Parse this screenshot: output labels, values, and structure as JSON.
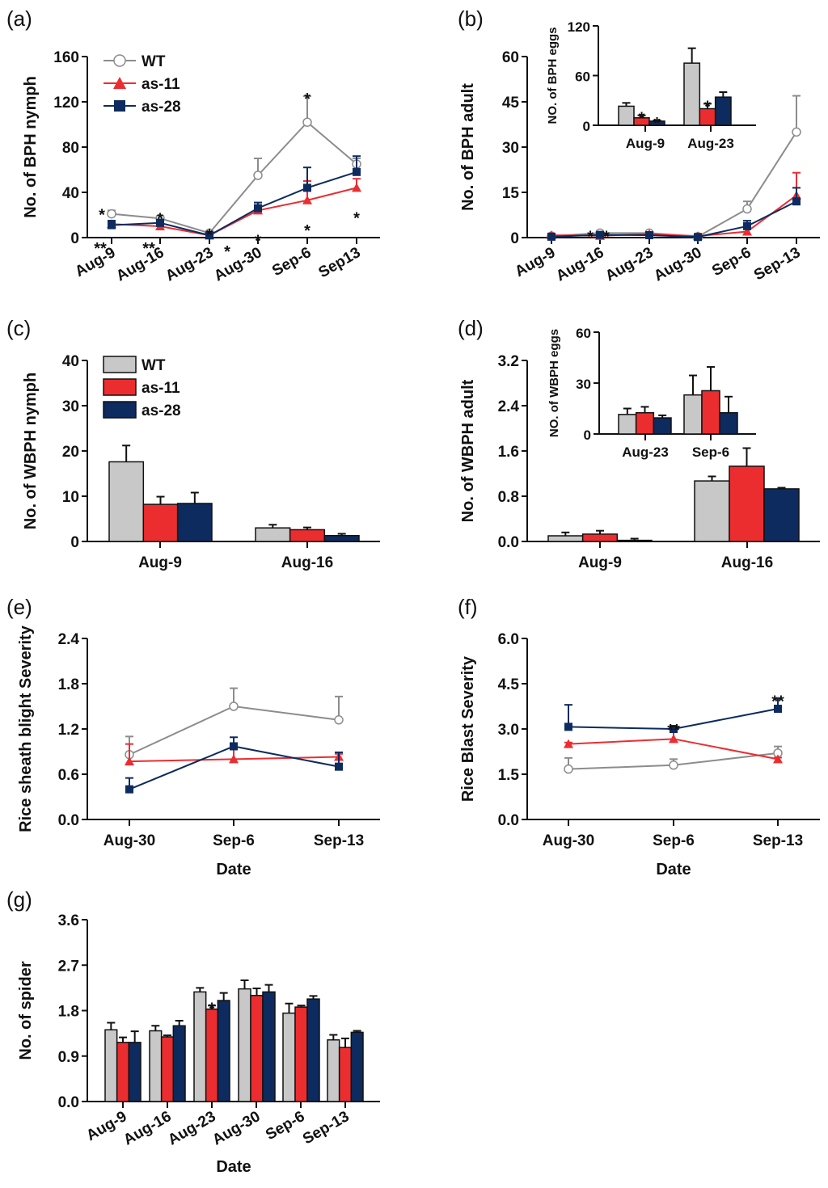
{
  "figure": {
    "colors": {
      "WT": "#c8c8c8",
      "WT_line": "#8c8c8c",
      "as-11": "#ec2d30",
      "as-28": "#0d2b5e",
      "axis": "#111111"
    },
    "legend_series": [
      "WT",
      "as-11",
      "as-28"
    ]
  },
  "chart_data": [
    {
      "id": "a",
      "panel_label": "(a)",
      "type": "line",
      "title": "",
      "xlabel": "",
      "ylabel": "No. of BPH nymph",
      "categories": [
        "Aug-9",
        "Aug-16",
        "Aug-23",
        "Aug-30",
        "Sep-6",
        "Sep13"
      ],
      "x_tick_rotation": "rotated",
      "ylim": [
        0,
        160
      ],
      "yticks": [
        "0",
        "40",
        "80",
        "120",
        "160"
      ],
      "ytick_values": [
        0,
        40,
        80,
        120,
        160
      ],
      "legend": "top-left",
      "series": [
        {
          "name": "WT",
          "values": [
            21,
            17,
            4,
            55,
            102,
            65
          ],
          "errors": [
            3,
            2,
            1,
            15,
            23,
            5
          ]
        },
        {
          "name": "as-11",
          "values": [
            12,
            10,
            2,
            24,
            33,
            44
          ],
          "errors": [
            3,
            2,
            1,
            4,
            17,
            8
          ]
        },
        {
          "name": "as-28",
          "values": [
            11,
            13,
            2,
            26,
            44,
            58
          ],
          "errors": [
            4,
            3,
            1,
            5,
            18,
            14
          ]
        }
      ],
      "annotations": [
        {
          "text": "*",
          "category": "Aug-9",
          "pos": "above-left"
        },
        {
          "text": "**",
          "category": "Aug-9",
          "pos": "baseline-left"
        },
        {
          "text": "*",
          "category": "Aug-16",
          "pos": "above"
        },
        {
          "text": "**",
          "category": "Aug-16",
          "pos": "baseline-left"
        },
        {
          "text": "*",
          "category": "Aug-23",
          "pos": "above"
        },
        {
          "text": "*",
          "category": "Aug-23",
          "pos": "baseline-right"
        },
        {
          "text": "*",
          "category": "Aug-30",
          "pos": "below"
        },
        {
          "text": "*",
          "category": "Sep-6",
          "pos": "above"
        },
        {
          "text": "*",
          "category": "Sep-6",
          "pos": "below"
        },
        {
          "text": "*",
          "category": "Sep13",
          "pos": "below"
        }
      ]
    },
    {
      "id": "b",
      "panel_label": "(b)",
      "type": "line",
      "title": "",
      "xlabel": "",
      "ylabel": "No. of BPH adult",
      "categories": [
        "Aug-9",
        "Aug-16",
        "Aug-23",
        "Aug-30",
        "Sep-6",
        "Sep-13"
      ],
      "x_tick_rotation": "rotated",
      "ylim": [
        0,
        60
      ],
      "yticks": [
        "0",
        "15",
        "30",
        "45",
        "60"
      ],
      "ytick_values": [
        0,
        15,
        30,
        45,
        60
      ],
      "series": [
        {
          "name": "WT",
          "values": [
            0.5,
            1.5,
            1.5,
            0.3,
            9.5,
            35
          ],
          "errors": [
            0.3,
            0.3,
            0.3,
            0.2,
            2.5,
            12
          ]
        },
        {
          "name": "as-11",
          "values": [
            0.8,
            0.6,
            1.2,
            0.5,
            2,
            14
          ],
          "errors": [
            0.3,
            0.3,
            0.3,
            0.2,
            0.8,
            7.5
          ]
        },
        {
          "name": "as-28",
          "values": [
            0.3,
            0.9,
            0.8,
            0.2,
            3.8,
            12
          ],
          "errors": [
            0.2,
            0.3,
            0.2,
            0.1,
            1.8,
            4.5
          ]
        }
      ],
      "annotations": [
        {
          "text": "*",
          "category": "Aug-16",
          "pos": "above-left"
        },
        {
          "text": "*",
          "category": "Aug-16",
          "pos": "above-right"
        }
      ],
      "inset": {
        "type": "bar",
        "ylabel": "NO. of BPH eggs",
        "categories": [
          "Aug-9",
          "Aug-23"
        ],
        "ylim": [
          0,
          120
        ],
        "yticks": [
          "0",
          "60",
          "120"
        ],
        "ytick_values": [
          0,
          60,
          120
        ],
        "series": [
          {
            "name": "WT",
            "values": [
              23,
              75
            ],
            "errors": [
              4,
              18
            ]
          },
          {
            "name": "as-11",
            "values": [
              9,
              20
            ],
            "errors": [
              3,
              6
            ]
          },
          {
            "name": "as-28",
            "values": [
              5,
              34
            ],
            "errors": [
              1,
              6
            ]
          }
        ],
        "annotations": [
          {
            "text": "*",
            "category": "Aug-9",
            "series": "as-11"
          },
          {
            "text": "*",
            "category": "Aug-9",
            "series": "as-28"
          },
          {
            "text": "*",
            "category": "Aug-23",
            "series": "as-11"
          }
        ]
      }
    },
    {
      "id": "c",
      "panel_label": "(c)",
      "type": "bar",
      "title": "",
      "xlabel": "",
      "ylabel": "No. of WBPH nymph",
      "categories": [
        "Aug-9",
        "Aug-16"
      ],
      "ylim": [
        0,
        40
      ],
      "yticks": [
        "0",
        "10",
        "20",
        "30",
        "40"
      ],
      "ytick_values": [
        0,
        10,
        20,
        30,
        40
      ],
      "legend": "top-left",
      "series": [
        {
          "name": "WT",
          "values": [
            17.6,
            3.0
          ],
          "errors": [
            3.6,
            0.7
          ]
        },
        {
          "name": "as-11",
          "values": [
            8.2,
            2.6
          ],
          "errors": [
            1.7,
            0.5
          ]
        },
        {
          "name": "as-28",
          "values": [
            8.4,
            1.3
          ],
          "errors": [
            2.4,
            0.4
          ]
        }
      ]
    },
    {
      "id": "d",
      "panel_label": "(d)",
      "type": "bar",
      "title": "",
      "xlabel": "",
      "ylabel": "No. of WBPH adult",
      "categories": [
        "Aug-9",
        "Aug-16"
      ],
      "ylim": [
        0,
        3.2
      ],
      "yticks": [
        "0.0",
        "0.8",
        "1.6",
        "2.4",
        "3.2"
      ],
      "ytick_values": [
        0,
        0.8,
        1.6,
        2.4,
        3.2
      ],
      "series": [
        {
          "name": "WT",
          "values": [
            0.1,
            1.07
          ],
          "errors": [
            0.06,
            0.08
          ]
        },
        {
          "name": "as-11",
          "values": [
            0.13,
            1.33
          ],
          "errors": [
            0.06,
            0.32
          ]
        },
        {
          "name": "as-28",
          "values": [
            0.02,
            0.93
          ],
          "errors": [
            0.03,
            0.02
          ]
        }
      ],
      "inset": {
        "type": "bar",
        "ylabel": "NO. of WBPH eggs",
        "categories": [
          "Aug-23",
          "Sep-6"
        ],
        "ylim": [
          0,
          60
        ],
        "yticks": [
          "0",
          "30",
          "60"
        ],
        "ytick_values": [
          0,
          30,
          60
        ],
        "series": [
          {
            "name": "WT",
            "values": [
              11.5,
              23
            ],
            "errors": [
              3.5,
              11.5
            ]
          },
          {
            "name": "as-11",
            "values": [
              12.5,
              25.5
            ],
            "errors": [
              3.5,
              14
            ]
          },
          {
            "name": "as-28",
            "values": [
              9.5,
              12.5
            ],
            "errors": [
              1.5,
              9.5
            ]
          }
        ]
      }
    },
    {
      "id": "e",
      "panel_label": "(e)",
      "type": "line",
      "title": "",
      "xlabel": "Date",
      "ylabel": "Rice sheath blight Severity",
      "categories": [
        "Aug-30",
        "Sep-6",
        "Sep-13"
      ],
      "ylim": [
        0,
        2.4
      ],
      "yticks": [
        "0.0",
        "0.6",
        "1.2",
        "1.8",
        "2.4"
      ],
      "ytick_values": [
        0,
        0.6,
        1.2,
        1.8,
        2.4
      ],
      "series": [
        {
          "name": "WT",
          "values": [
            0.86,
            1.5,
            1.32
          ],
          "errors": [
            0.24,
            0.24,
            0.31
          ]
        },
        {
          "name": "as-11",
          "values": [
            0.77,
            0.8,
            0.83
          ],
          "errors": [
            0.23,
            0.21,
            0.04
          ]
        },
        {
          "name": "as-28",
          "values": [
            0.4,
            0.97,
            0.7
          ],
          "errors": [
            0.15,
            0.12,
            0.19
          ]
        }
      ]
    },
    {
      "id": "f",
      "panel_label": "(f)",
      "type": "line",
      "title": "",
      "xlabel": "Date",
      "ylabel": "Rice Blast Severity",
      "categories": [
        "Aug-30",
        "Sep-6",
        "Sep-13"
      ],
      "ylim": [
        0,
        6.0
      ],
      "yticks": [
        "0.0",
        "1.5",
        "3.0",
        "4.5",
        "6.0"
      ],
      "ytick_values": [
        0,
        1.5,
        3.0,
        4.5,
        6.0
      ],
      "series": [
        {
          "name": "WT",
          "values": [
            1.67,
            1.8,
            2.2
          ],
          "errors": [
            0.37,
            0.2,
            0.22
          ]
        },
        {
          "name": "as-11",
          "values": [
            2.5,
            2.67,
            2.0
          ],
          "errors": [
            0.05,
            0.33,
            0.05
          ]
        },
        {
          "name": "as-28",
          "values": [
            3.07,
            3.0,
            3.67
          ],
          "errors": [
            0.73,
            0.05,
            0.33
          ]
        }
      ],
      "annotations": [
        {
          "text": "**",
          "category": "Sep-6",
          "pos": "above"
        },
        {
          "text": "**",
          "category": "Sep-13",
          "pos": "above"
        }
      ]
    },
    {
      "id": "g",
      "panel_label": "(g)",
      "type": "bar",
      "title": "",
      "xlabel": "Date",
      "ylabel": "No. of spider",
      "categories": [
        "Aug-9",
        "Aug-16",
        "Aug-23",
        "Aug-30",
        "Sep-6",
        "Sep-13"
      ],
      "x_tick_rotation": "rotated",
      "ylim": [
        0,
        3.6
      ],
      "yticks": [
        "0.0",
        "0.9",
        "1.8",
        "2.7",
        "3.6"
      ],
      "ytick_values": [
        0,
        0.9,
        1.8,
        2.7,
        3.6
      ],
      "series": [
        {
          "name": "WT",
          "values": [
            1.42,
            1.4,
            2.17,
            2.23,
            1.75,
            1.22
          ],
          "errors": [
            0.14,
            0.1,
            0.08,
            0.17,
            0.19,
            0.1
          ]
        },
        {
          "name": "as-11",
          "values": [
            1.17,
            1.28,
            1.83,
            2.1,
            1.87,
            1.07
          ],
          "errors": [
            0.1,
            0.03,
            0.07,
            0.14,
            0.03,
            0.18
          ]
        },
        {
          "name": "as-28",
          "values": [
            1.17,
            1.5,
            2.0,
            2.17,
            2.03,
            1.37
          ],
          "errors": [
            0.22,
            0.1,
            0.15,
            0.14,
            0.06,
            0.03
          ]
        }
      ],
      "annotations": [
        {
          "text": "*",
          "category": "Aug-23",
          "series": "as-11"
        }
      ]
    }
  ]
}
